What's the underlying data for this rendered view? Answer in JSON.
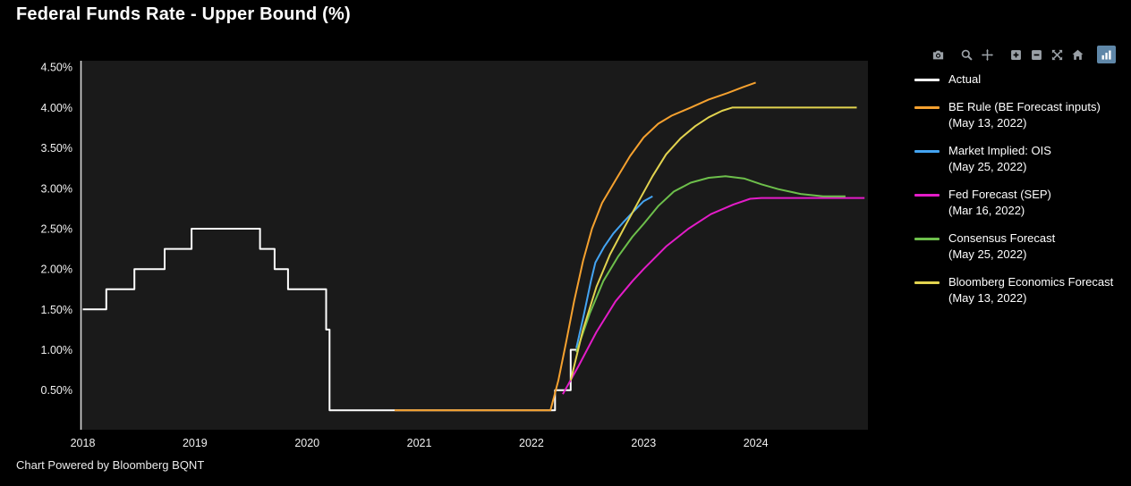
{
  "title": "Federal Funds Rate - Upper Bound (%)",
  "footer": "Chart Powered by Bloomberg BQNT",
  "colors": {
    "background": "#000000",
    "plot_bg": "#1a1a1a",
    "axis_line": "#d8d8d8",
    "tick_text": "#f0f0f0",
    "title_text": "#ffffff",
    "legend_text": "#ffffff",
    "icon": "#9aa0a6",
    "icon_active_bg": "#5f87a8"
  },
  "toolbar": {
    "icons": [
      {
        "name": "camera-icon",
        "active": false,
        "group_start": false
      },
      {
        "name": "zoom-icon",
        "active": false,
        "group_start": true
      },
      {
        "name": "pan-icon",
        "active": false,
        "group_start": false
      },
      {
        "name": "zoom-in-icon",
        "active": false,
        "group_start": true
      },
      {
        "name": "zoom-out-icon",
        "active": false,
        "group_start": false
      },
      {
        "name": "autoscale-icon",
        "active": false,
        "group_start": false
      },
      {
        "name": "home-icon",
        "active": false,
        "group_start": false
      },
      {
        "name": "bar-chart-icon",
        "active": true,
        "group_start": true
      }
    ]
  },
  "chart_data": {
    "type": "line",
    "title": "Federal Funds Rate - Upper Bound (%)",
    "xlabel": "",
    "ylabel": "",
    "grid": false,
    "legend_position": "right",
    "xlim": [
      2017.98,
      2025.0
    ],
    "ylim": [
      0.01,
      4.58
    ],
    "x_ticks": [
      {
        "value": 2018,
        "label": "2018"
      },
      {
        "value": 2019,
        "label": "2019"
      },
      {
        "value": 2020,
        "label": "2020"
      },
      {
        "value": 2021,
        "label": "2021"
      },
      {
        "value": 2022,
        "label": "2022"
      },
      {
        "value": 2023,
        "label": "2023"
      },
      {
        "value": 2024,
        "label": "2024"
      }
    ],
    "y_ticks": [
      {
        "value": 0.5,
        "label": "0.50%"
      },
      {
        "value": 1.0,
        "label": "1.00%"
      },
      {
        "value": 1.5,
        "label": "1.50%"
      },
      {
        "value": 2.0,
        "label": "2.00%"
      },
      {
        "value": 2.5,
        "label": "2.50%"
      },
      {
        "value": 3.0,
        "label": "3.00%"
      },
      {
        "value": 3.5,
        "label": "3.50%"
      },
      {
        "value": 4.0,
        "label": "4.00%"
      },
      {
        "value": 4.5,
        "label": "4.50%"
      }
    ],
    "series": [
      {
        "id": "actual",
        "name": "Actual",
        "date": "",
        "color": "#ffffff",
        "points": [
          [
            2018.0,
            1.5
          ],
          [
            2018.21,
            1.5
          ],
          [
            2018.21,
            1.75
          ],
          [
            2018.46,
            1.75
          ],
          [
            2018.46,
            2.0
          ],
          [
            2018.73,
            2.0
          ],
          [
            2018.73,
            2.25
          ],
          [
            2018.97,
            2.25
          ],
          [
            2018.97,
            2.5
          ],
          [
            2019.58,
            2.5
          ],
          [
            2019.58,
            2.25
          ],
          [
            2019.71,
            2.25
          ],
          [
            2019.71,
            2.0
          ],
          [
            2019.83,
            2.0
          ],
          [
            2019.83,
            1.75
          ],
          [
            2020.17,
            1.75
          ],
          [
            2020.17,
            1.25
          ],
          [
            2020.2,
            1.25
          ],
          [
            2020.2,
            0.25
          ],
          [
            2022.21,
            0.25
          ],
          [
            2022.21,
            0.5
          ],
          [
            2022.35,
            0.5
          ],
          [
            2022.35,
            1.0
          ],
          [
            2022.42,
            1.0
          ]
        ]
      },
      {
        "id": "be-rule",
        "name": "BE Rule (BE Forecast inputs)",
        "date": "(May 13, 2022)",
        "color": "#f5a12f",
        "points": [
          [
            2020.78,
            0.25
          ],
          [
            2022.17,
            0.25
          ],
          [
            2022.24,
            0.62
          ],
          [
            2022.31,
            1.1
          ],
          [
            2022.38,
            1.6
          ],
          [
            2022.46,
            2.1
          ],
          [
            2022.54,
            2.5
          ],
          [
            2022.63,
            2.82
          ],
          [
            2022.75,
            3.1
          ],
          [
            2022.88,
            3.4
          ],
          [
            2023.0,
            3.63
          ],
          [
            2023.13,
            3.8
          ],
          [
            2023.25,
            3.9
          ],
          [
            2023.42,
            4.0
          ],
          [
            2023.58,
            4.1
          ],
          [
            2023.75,
            4.18
          ],
          [
            2023.88,
            4.25
          ],
          [
            2024.0,
            4.31
          ]
        ]
      },
      {
        "id": "ois",
        "name": "Market Implied: OIS",
        "date": "(May 25, 2022)",
        "color": "#44a4f2",
        "points": [
          [
            2022.4,
            1.02
          ],
          [
            2022.47,
            1.45
          ],
          [
            2022.53,
            1.85
          ],
          [
            2022.57,
            2.08
          ],
          [
            2022.65,
            2.28
          ],
          [
            2022.73,
            2.44
          ],
          [
            2022.82,
            2.58
          ],
          [
            2022.9,
            2.7
          ],
          [
            2023.0,
            2.84
          ],
          [
            2023.08,
            2.9
          ]
        ]
      },
      {
        "id": "fed-sep",
        "name": "Fed Forecast (SEP)",
        "date": "(Mar 16, 2022)",
        "color": "#e31cc8",
        "points": [
          [
            2022.28,
            0.45
          ],
          [
            2022.42,
            0.8
          ],
          [
            2022.58,
            1.22
          ],
          [
            2022.75,
            1.6
          ],
          [
            2022.9,
            1.85
          ],
          [
            2023.0,
            2.0
          ],
          [
            2023.2,
            2.28
          ],
          [
            2023.4,
            2.5
          ],
          [
            2023.6,
            2.68
          ],
          [
            2023.8,
            2.8
          ],
          [
            2023.95,
            2.87
          ],
          [
            2024.05,
            2.88
          ],
          [
            2024.97,
            2.88
          ]
        ]
      },
      {
        "id": "consensus",
        "name": "Consensus Forecast",
        "date": "(May 25, 2022)",
        "color": "#6dbf4b",
        "points": [
          [
            2022.4,
            0.97
          ],
          [
            2022.52,
            1.45
          ],
          [
            2022.64,
            1.85
          ],
          [
            2022.77,
            2.15
          ],
          [
            2022.9,
            2.4
          ],
          [
            2023.0,
            2.56
          ],
          [
            2023.13,
            2.78
          ],
          [
            2023.27,
            2.96
          ],
          [
            2023.42,
            3.07
          ],
          [
            2023.58,
            3.13
          ],
          [
            2023.73,
            3.15
          ],
          [
            2023.9,
            3.12
          ],
          [
            2024.05,
            3.05
          ],
          [
            2024.2,
            2.99
          ],
          [
            2024.4,
            2.93
          ],
          [
            2024.6,
            2.9
          ],
          [
            2024.8,
            2.9
          ]
        ]
      },
      {
        "id": "be-forecast",
        "name": "Bloomberg Economics Forecast",
        "date": "(May 13, 2022)",
        "color": "#e2d34f",
        "points": [
          [
            2022.35,
            0.62
          ],
          [
            2022.46,
            1.25
          ],
          [
            2022.58,
            1.78
          ],
          [
            2022.7,
            2.18
          ],
          [
            2022.83,
            2.52
          ],
          [
            2022.96,
            2.85
          ],
          [
            2023.08,
            3.15
          ],
          [
            2023.2,
            3.42
          ],
          [
            2023.33,
            3.62
          ],
          [
            2023.46,
            3.77
          ],
          [
            2023.58,
            3.88
          ],
          [
            2023.7,
            3.96
          ],
          [
            2023.79,
            4.0
          ],
          [
            2024.9,
            4.0
          ]
        ]
      }
    ]
  }
}
